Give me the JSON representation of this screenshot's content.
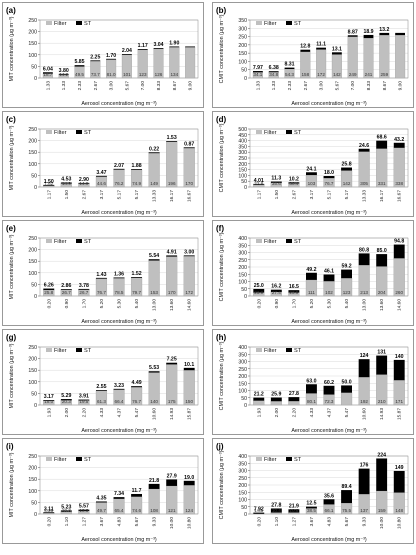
{
  "figure": {
    "panel_border_color": "#808080",
    "filter_color": "#bfbfbf",
    "st_color": "#000000"
  },
  "chart_data": [
    {
      "panel": "(a)",
      "type": "bar",
      "stacked": true,
      "legend_position": "top-left",
      "ylabel": "MIT concentration (µg m⁻³)",
      "xlabel": "Aerosol concentration (mg m⁻³)",
      "ylim": [
        0,
        250
      ],
      "yticks": [
        0,
        50,
        100,
        150,
        200,
        250
      ],
      "categories": [
        "1.33",
        "1.33",
        "2.33",
        "2.67",
        "3.00",
        "5.67",
        "7.00",
        "8.33",
        "8.67",
        "9.00"
      ],
      "series": [
        {
          "name": "Filter",
          "values": [
            18.7,
            14.2,
            49.5,
            73.7,
            81.0,
            101,
            123,
            126,
            134,
            134
          ]
        },
        {
          "name": "ST",
          "values": [
            6.04,
            3.8,
            5.85,
            2.25,
            1.7,
            2.04,
            1.17,
            3.04,
            1.9,
            1.9
          ]
        }
      ],
      "filter_labels": [
        "18.7",
        "14.2",
        "49.5",
        "73.7",
        "81.0",
        "101",
        "123",
        "126",
        "134",
        ""
      ],
      "st_labels": [
        "6.04",
        "3.80",
        "5.85",
        "2.25",
        "1.70",
        "2.04",
        "1.17",
        "3.04",
        "1.90",
        ""
      ]
    },
    {
      "panel": "(b)",
      "type": "bar",
      "stacked": true,
      "legend_position": "top-left",
      "ylabel": "CMIT concentration (µg m⁻³)",
      "xlabel": "Aerosol concentration (mg m⁻³)",
      "ylim": [
        0,
        350
      ],
      "yticks": [
        0,
        50,
        100,
        150,
        200,
        250,
        300,
        350
      ],
      "categories": [
        "1.33",
        "1.33",
        "2.33",
        "2.67",
        "3.00",
        "5.67",
        "7.00",
        "8.33",
        "8.67",
        "9.00"
      ],
      "series": [
        {
          "name": "Filter",
          "values": [
            34.1,
            34.8,
            54.3,
            158,
            172,
            142,
            249,
            241,
            259,
            259
          ]
        },
        {
          "name": "ST",
          "values": [
            7.97,
            6.38,
            8.31,
            12.8,
            11.1,
            13.1,
            8.87,
            18.9,
            13.2,
            13.2
          ]
        }
      ],
      "filter_labels": [
        "34.1",
        "34.8",
        "54.3",
        "158",
        "172",
        "142",
        "249",
        "241",
        "259",
        ""
      ],
      "st_labels": [
        "7.97",
        "6.38",
        "8.31",
        "12.8",
        "11.1",
        "13.1",
        "8.87",
        "18.9",
        "13.2",
        ""
      ]
    },
    {
      "panel": "(c)",
      "type": "bar",
      "stacked": true,
      "legend_position": "top-left",
      "ylabel": "MIT concentration (µg m⁻³)",
      "xlabel": "Aerosol concentration (mg m⁻³)",
      "ylim": [
        0,
        250
      ],
      "yticks": [
        0,
        50,
        100,
        150,
        200,
        250
      ],
      "categories": [
        "1.17",
        "1.50",
        "2.67",
        "3.17",
        "5.17",
        "5.17",
        "13.33",
        "16.17",
        "16.67"
      ],
      "series": [
        {
          "name": "Filter",
          "values": [
            7.62,
            14.9,
            14.9,
            44.6,
            76.2,
            74.9,
            149,
            196,
            170
          ]
        },
        {
          "name": "ST",
          "values": [
            1.5,
            4.53,
            2.9,
            3.47,
            2.07,
            1.88,
            0.22,
            1.53,
            0.87
          ]
        }
      ],
      "filter_labels": [
        "7.62",
        "14.9",
        "14.9",
        "44.6",
        "76.2",
        "74.9",
        "149",
        "196",
        "170"
      ],
      "st_labels": [
        "1.50",
        "4.53",
        "2.90",
        "3.47",
        "2.07",
        "1.88",
        "0.22",
        "1.53",
        "0.87"
      ]
    },
    {
      "panel": "(d)",
      "type": "bar",
      "stacked": true,
      "legend_position": "top-left",
      "ylabel": "CMIT concentration (µg m⁻³)",
      "xlabel": "Aerosol concentration (mg m⁻³)",
      "ylim": [
        0,
        500
      ],
      "yticks": [
        0,
        50,
        100,
        150,
        200,
        250,
        300,
        350,
        400,
        450,
        500
      ],
      "categories": [
        "1.17",
        "1.50",
        "2.67",
        "3.17",
        "5.17",
        "5.17",
        "13.33",
        "16.17",
        "16.67"
      ],
      "series": [
        {
          "name": "Filter",
          "values": [
            22.8,
            35.6,
            30.4,
            103,
            76.7,
            142,
            305,
            331,
            338
          ]
        },
        {
          "name": "ST",
          "values": [
            4.01,
            11.3,
            10.2,
            24.1,
            18.0,
            25.8,
            24.6,
            68.6,
            43.2
          ]
        }
      ],
      "filter_labels": [
        "22.8",
        "35.6",
        "30.4",
        "103",
        "76.7",
        "142",
        "305",
        "331",
        "338"
      ],
      "st_labels": [
        "4.01",
        "11.3",
        "10.2",
        "24.1",
        "18.0",
        "25.8",
        "24.6",
        "68.6",
        "43.2"
      ]
    },
    {
      "panel": "(e)",
      "type": "bar",
      "stacked": true,
      "legend_position": "top-left",
      "ylabel": "MIT concentration (µg m⁻³)",
      "xlabel": "Aerosol concentration (mg m⁻³)",
      "ylim": [
        0,
        250
      ],
      "yticks": [
        0,
        50,
        100,
        150,
        200,
        250
      ],
      "categories": [
        "0.20",
        "0.90",
        "1.70",
        "5.20",
        "5.30",
        "5.40",
        "13.00",
        "13.60",
        "14.60"
      ],
      "series": [
        {
          "name": "Filter",
          "values": [
            25.8,
            26.7,
            26.7,
            76.7,
            78.5,
            79.7,
            153,
            170,
            172
          ]
        },
        {
          "name": "ST",
          "values": [
            6.26,
            2.86,
            3.78,
            1.43,
            1.36,
            1.52,
            5.54,
            4.91,
            3.0
          ]
        }
      ],
      "filter_labels": [
        "25.8",
        "26.7",
        "26.7",
        "76.7",
        "78.5",
        "79.7",
        "153",
        "170",
        "172"
      ],
      "st_labels": [
        "6.26",
        "2.86",
        "3.78",
        "1.43",
        "1.36",
        "1.52",
        "5.54",
        "4.91",
        "3.00"
      ]
    },
    {
      "panel": "(f)",
      "type": "bar",
      "stacked": true,
      "legend_position": "top-left",
      "ylabel": "CMIT concentration (µg m⁻³)",
      "xlabel": "Aerosol concentration (mg m⁻³)",
      "ylim": [
        0,
        400
      ],
      "yticks": [
        0,
        50,
        100,
        150,
        200,
        250,
        300,
        350,
        400
      ],
      "categories": [
        "0.20",
        "0.90",
        "1.70",
        "5.20",
        "5.30",
        "5.40",
        "13.00",
        "13.60",
        "14.60"
      ],
      "series": [
        {
          "name": "Filter",
          "values": [
            23.9,
            27.4,
            23.9,
            111,
            102,
            123,
            213,
            204,
            260
          ]
        },
        {
          "name": "ST",
          "values": [
            25.0,
            16.2,
            16.5,
            49.2,
            46.1,
            59.2,
            80.8,
            85.0,
            94.8
          ]
        }
      ],
      "filter_labels": [
        "23.9",
        "27.4",
        "23.9",
        "111",
        "102",
        "123",
        "213",
        "204",
        "260"
      ],
      "st_labels": [
        "25.0",
        "16.2",
        "16.5",
        "49.2",
        "46.1",
        "59.2",
        "80.8",
        "85.0",
        "94.8"
      ]
    },
    {
      "panel": "(g)",
      "type": "bar",
      "stacked": true,
      "legend_position": "top-left",
      "ylabel": "MIT concentration (µg m⁻³)",
      "xlabel": "Aerosol concentration (mg m⁻³)",
      "ylim": [
        0,
        250
      ],
      "yticks": [
        0,
        50,
        100,
        150,
        200,
        250
      ],
      "categories": [
        "1.93",
        "2.00",
        "2.20",
        "4.33",
        "4.37",
        "5.47",
        "10.60",
        "14.93",
        "15.87"
      ],
      "series": [
        {
          "name": "Filter",
          "values": [
            18.0,
            20.3,
            19.5,
            61.3,
            66.4,
            76.7,
            140,
            175,
            150
          ]
        },
        {
          "name": "ST",
          "values": [
            3.17,
            5.29,
            3.91,
            2.55,
            3.23,
            4.49,
            5.53,
            7.25,
            10.1
          ]
        }
      ],
      "filter_labels": [
        "18.0",
        "20.3",
        "19.5",
        "61.3",
        "66.4",
        "76.7",
        "140",
        "175",
        "150"
      ],
      "st_labels": [
        "3.17",
        "5.29",
        "3.91",
        "2.55",
        "3.23",
        "4.49",
        "5.53",
        "7.25",
        "10.1"
      ]
    },
    {
      "panel": "(h)",
      "type": "bar",
      "stacked": true,
      "legend_position": "top-left",
      "ylabel": "CMIT concentration (µg m⁻³)",
      "xlabel": "Aerosol concentration (mg m⁻³)",
      "ylim": [
        0,
        400
      ],
      "yticks": [
        0,
        50,
        100,
        150,
        200,
        250,
        300,
        350,
        400
      ],
      "categories": [
        "1.93",
        "2.00",
        "2.20",
        "4.33",
        "4.37",
        "5.47",
        "10.60",
        "14.93",
        "15.87"
      ],
      "series": [
        {
          "name": "Filter",
          "values": [
            30.0,
            26.0,
            26.6,
            80.1,
            72.3,
            85.0,
            192,
            210,
            171
          ]
        },
        {
          "name": "ST",
          "values": [
            21.2,
            25.9,
            27.8,
            63.0,
            60.2,
            50.0,
            124,
            131,
            140
          ]
        }
      ],
      "filter_labels": [
        "",
        "",
        "",
        "80.1",
        "72.3",
        "",
        "192",
        "210",
        "171"
      ],
      "st_labels": [
        "21.2",
        "25.9",
        "27.8",
        "63.0",
        "60.2",
        "50.0",
        "124",
        "131",
        "140"
      ]
    },
    {
      "panel": "(i)",
      "type": "bar",
      "stacked": true,
      "legend_position": "top-left",
      "ylabel": "MIT concentration (µg m⁻³)",
      "xlabel": "Aerosol concentration (mg m⁻³)",
      "ylim": [
        0,
        250
      ],
      "yticks": [
        0,
        50,
        100,
        150,
        200,
        250
      ],
      "categories": [
        "0.20",
        "1.10",
        "1.27",
        "3.67",
        "4.83",
        "5.67",
        "9.33",
        "10.00",
        "10.80"
      ],
      "series": [
        {
          "name": "Filter",
          "values": [
            4.25,
            10.3,
            13.3,
            49.7,
            65.4,
            74.6,
            108,
            121,
            124
          ]
        },
        {
          "name": "ST",
          "values": [
            3.11,
            5.23,
            5.57,
            4.35,
            7.34,
            11.7,
            21.8,
            27.9,
            19.0
          ]
        }
      ],
      "filter_labels": [
        "4.25",
        "10.3",
        "13.3",
        "49.7",
        "65.4",
        "74.6",
        "108",
        "121",
        "124"
      ],
      "st_labels": [
        "3.11",
        "5.23",
        "5.57",
        "4.35",
        "7.34",
        "11.7",
        "21.8",
        "27.9",
        "19.0"
      ]
    },
    {
      "panel": "(j)",
      "type": "bar",
      "stacked": true,
      "legend_position": "top-left",
      "ylabel": "CMIT concentration (µg m⁻³)",
      "xlabel": "Aerosol concentration (mg m⁻³)",
      "ylim": [
        0,
        400
      ],
      "yticks": [
        0,
        50,
        100,
        150,
        200,
        250,
        300,
        350,
        400
      ],
      "categories": [
        "0.20",
        "1.10",
        "1.27",
        "3.67",
        "4.83",
        "5.67",
        "9.33",
        "10.00",
        "10.80"
      ],
      "series": [
        {
          "name": "Filter",
          "values": [
            1.65,
            10.4,
            10.6,
            38.5,
            66.1,
            75.5,
            137,
            159,
            148
          ]
        },
        {
          "name": "ST",
          "values": [
            7.92,
            27.8,
            21.9,
            12.5,
            35.6,
            89.4,
            176,
            224,
            149
          ]
        }
      ],
      "filter_labels": [
        "1.65",
        "10.4",
        "10.6",
        "38.5",
        "66.1",
        "75.5",
        "137",
        "159",
        "148"
      ],
      "st_labels": [
        "7.92",
        "27.8",
        "21.9",
        "12.5",
        "35.6",
        "89.4",
        "176",
        "224",
        "149"
      ]
    }
  ]
}
